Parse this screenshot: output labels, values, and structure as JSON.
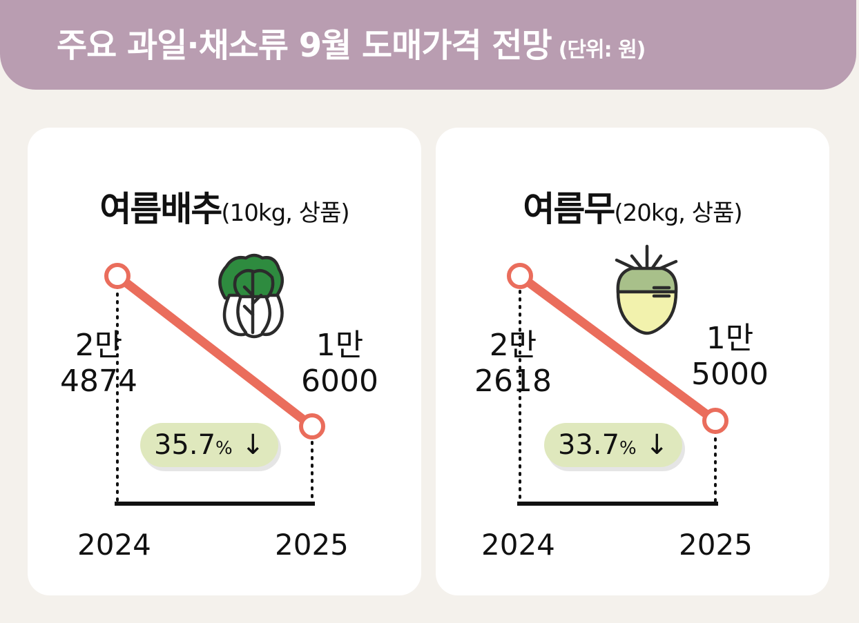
{
  "header": {
    "title": "주요 과일·채소류 9월 도매가격 전망",
    "unit": "(단위: 원)"
  },
  "chart_data": [
    {
      "type": "line",
      "title": "여름배추",
      "spec": "(10kg, 상품)",
      "x": [
        "2024",
        "2025"
      ],
      "values": [
        24874,
        16000
      ],
      "value_labels": [
        [
          "2만",
          "4874"
        ],
        [
          "1만",
          "6000"
        ]
      ],
      "change_value": "35.7",
      "change_unit": "%",
      "change_arrow": "↓",
      "icon": "napa-cabbage-icon",
      "colors": {
        "line": "#ea6d5c",
        "pill": "#dfe8bd"
      }
    },
    {
      "type": "line",
      "title": "여름무",
      "spec": "(20kg, 상품)",
      "x": [
        "2024",
        "2025"
      ],
      "values": [
        22618,
        15000
      ],
      "value_labels": [
        [
          "2만",
          "2618"
        ],
        [
          "1만",
          "5000"
        ]
      ],
      "change_value": "33.7",
      "change_unit": "%",
      "change_arrow": "↓",
      "icon": "radish-icon",
      "colors": {
        "line": "#ea6d5c",
        "pill": "#dfe8bd"
      }
    }
  ]
}
